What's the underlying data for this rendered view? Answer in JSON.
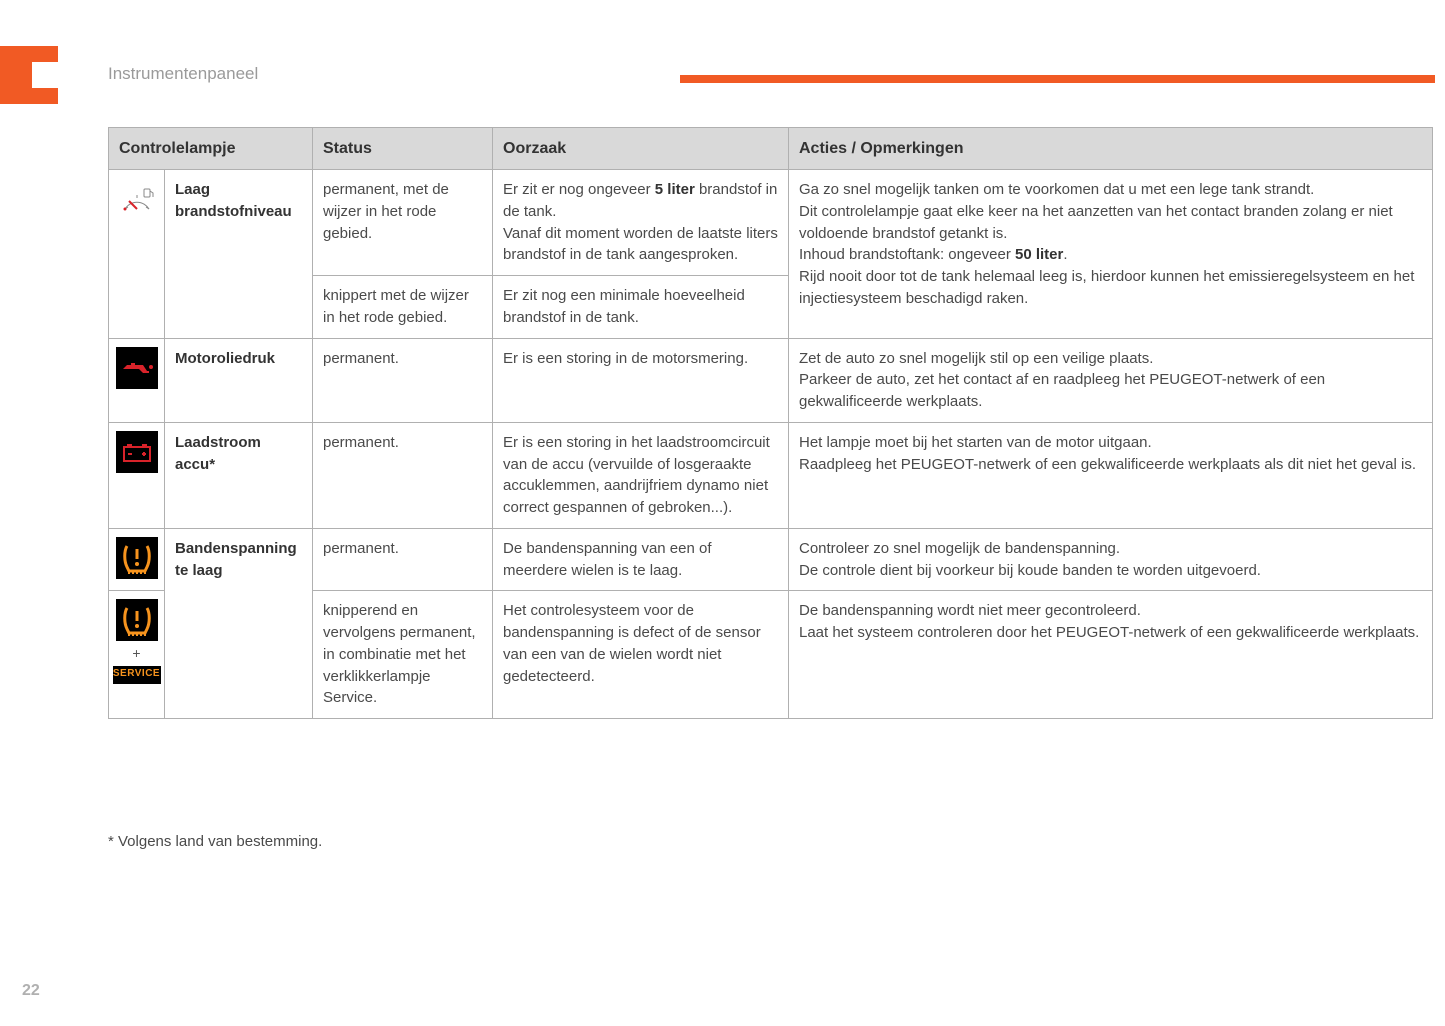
{
  "header": {
    "section_title": "Instrumentenpaneel",
    "accent_color": "#f15a24",
    "page_number": "22"
  },
  "table": {
    "columns": [
      "Controlelampje",
      "Status",
      "Oorzaak",
      "Acties / Opmerkingen"
    ],
    "rows": [
      {
        "icon": "fuel-low",
        "label": "Laag brandstofniveau",
        "label_rowspan": 2,
        "action_rowspan": 2,
        "status": "permanent, met de wijzer in het rode gebied.",
        "cause_html": "Er zit er nog ongeveer <b>5 liter</b> brandstof in de tank.<br>Vanaf dit moment worden de laatste liters brandstof in de tank aangesproken.",
        "action_html": "Ga zo snel mogelijk tanken om te voorkomen dat u met een lege tank strandt.<br>Dit controlelampje gaat elke keer na het aanzetten van het contact branden zolang er niet voldoende brandstof getankt is.<br>Inhoud brandstoftank: ongeveer <b>50 liter</b>.<br>Rijd nooit door tot de tank helemaal leeg is, hierdoor kunnen het emissieregelsysteem en het injectiesysteem beschadigd raken."
      },
      {
        "status": "knippert met de wijzer in het rode gebied.",
        "cause_html": "Er zit nog een minimale hoeveelheid brandstof in de tank."
      },
      {
        "icon": "oil-pressure",
        "label": "Motoroliedruk",
        "status": "permanent.",
        "cause_html": "Er is een storing in de motorsmering.",
        "action_html": "Zet de auto zo snel mogelijk stil op een veilige plaats.<br>Parkeer de auto, zet het contact af en raadpleeg het PEUGEOT-netwerk of een gekwalificeerde werkplaats."
      },
      {
        "icon": "battery",
        "label": "Laadstroom accu*",
        "status": "permanent.",
        "cause_html": "Er is een storing in het laadstroomcircuit van de accu (vervuilde of losgeraakte accuklemmen, aandrijfriem dynamo niet correct gespannen of gebroken...).",
        "action_html": "Het lampje moet bij het starten van de motor uitgaan.<br>Raadpleeg het PEUGEOT-netwerk of een gekwalificeerde werkplaats als dit niet het geval is."
      },
      {
        "icon": "tire-pressure",
        "label": "Bandenspanning te laag",
        "label_rowspan": 2,
        "status": "permanent.",
        "cause_html": "De bandenspanning van een of meerdere wielen is te laag.",
        "action_html": "Controleer zo snel mogelijk de bandenspanning.<br>De controle dient bij voorkeur bij koude banden te worden uitgevoerd."
      },
      {
        "icon": "tire-pressure-service",
        "status": "knipperend en vervolgens permanent, in combinatie met het verklikkerlampje Service.",
        "cause_html": "Het controlesysteem voor de bandenspanning is defect of de sensor van een van de wielen wordt niet gedetecteerd.",
        "action_html": "De bandenspanning wordt niet meer gecontroleerd.<br>Laat het systeem controleren door het PEUGEOT-netwerk of een gekwalificeerde werkplaats."
      }
    ]
  },
  "footnote": "* Volgens land van bestemming.",
  "colors": {
    "warning_orange": "#f7941e",
    "warning_red": "#d9232a",
    "icon_bg_dark": "#000000",
    "header_bg": "#d9d9d9",
    "border": "#b0b0b0"
  }
}
